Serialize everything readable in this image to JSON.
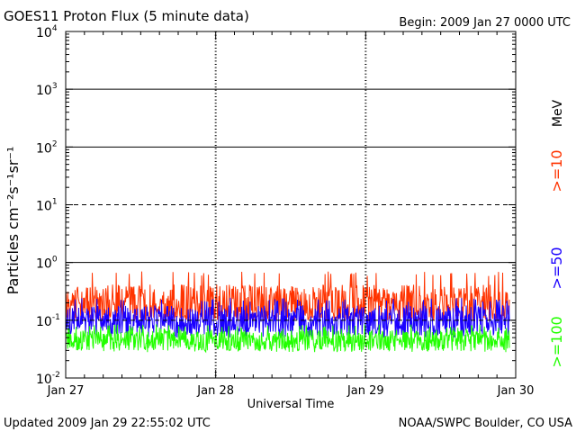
{
  "header": {
    "title": "GOES11 Proton Flux (5 minute data)",
    "begin": "Begin: 2009 Jan 27 0000 UTC"
  },
  "footer": {
    "updated": "Updated 2009 Jan 29 22:55:02 UTC",
    "source": "NOAA/SWPC Boulder, CO USA"
  },
  "chart_data": {
    "type": "line",
    "title": "GOES11 Proton Flux (5 minute data)",
    "xlabel": "Universal Time",
    "ylabel": "Particles cm⁻²s⁻¹sr⁻¹",
    "y_scale": "log",
    "ylim": [
      0.01,
      10000
    ],
    "x_range_days": [
      0,
      3
    ],
    "x_ticks": [
      {
        "label": "Jan 27",
        "day": 0
      },
      {
        "label": "Jan 28",
        "day": 1
      },
      {
        "label": "Jan 29",
        "day": 2
      },
      {
        "label": "Jan 30",
        "day": 3
      }
    ],
    "y_ticks": [
      {
        "base": "10",
        "exp": "-2",
        "value": 0.01
      },
      {
        "base": "10",
        "exp": "-1",
        "value": 0.1
      },
      {
        "base": "10",
        "exp": "0",
        "value": 1
      },
      {
        "base": "10",
        "exp": "1",
        "value": 10
      },
      {
        "base": "10",
        "exp": "2",
        "value": 100
      },
      {
        "base": "10",
        "exp": "3",
        "value": 1000
      },
      {
        "base": "10",
        "exp": "4",
        "value": 10000
      }
    ],
    "reference_lines": [
      {
        "value": 10,
        "style": "dashed"
      },
      {
        "value": 1,
        "style": "solid"
      },
      {
        "value": 100,
        "style": "solid"
      },
      {
        "value": 1000,
        "style": "solid"
      },
      {
        "value": 0.1,
        "style": "dashed"
      }
    ],
    "day_gridlines": "dashed",
    "legend_placement": "right",
    "legend_unit": "MeV",
    "series": [
      {
        "name": ">=10",
        "color": "#ff3300",
        "x_end_day": 2.96,
        "typical_value": 0.2,
        "range": [
          0.1,
          0.7
        ]
      },
      {
        "name": ">=50",
        "color": "#1a00ff",
        "x_end_day": 2.96,
        "typical_value": 0.1,
        "range": [
          0.05,
          0.25
        ]
      },
      {
        "name": ">=100",
        "color": "#22ff00",
        "x_end_day": 2.96,
        "typical_value": 0.045,
        "range": [
          0.028,
          0.085
        ]
      }
    ]
  }
}
